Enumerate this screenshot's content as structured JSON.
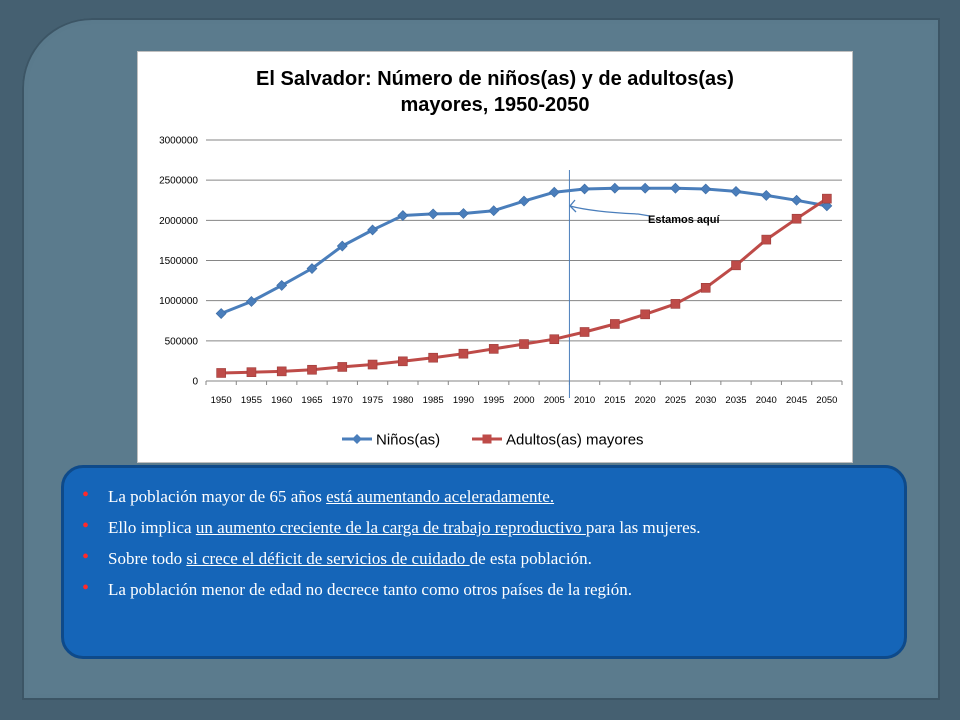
{
  "chart_data": {
    "type": "line",
    "title": "El Salvador: Número de niños(as) y de adultos(as) mayores, 1950-2050",
    "title_lines": [
      "El Salvador: Número de niños(as) y de adultos(as)",
      "mayores, 1950-2050"
    ],
    "categories": [
      "1950",
      "1955",
      "1960",
      "1965",
      "1970",
      "1975",
      "1980",
      "1985",
      "1990",
      "1995",
      "2000",
      "2005",
      "2010",
      "2015",
      "2020",
      "2025",
      "2030",
      "2035",
      "2040",
      "2045",
      "2050"
    ],
    "y_ticks": [
      "0",
      "500000",
      "1000000",
      "1500000",
      "2000000",
      "2500000",
      "3000000"
    ],
    "ylim": [
      0,
      3000000
    ],
    "grid": true,
    "legend_position": "bottom",
    "series": [
      {
        "name": "Niños(as)",
        "color": "#4a7ebb",
        "marker": "diamond",
        "values": [
          840000,
          990000,
          1190000,
          1400000,
          1680000,
          1880000,
          2060000,
          2080000,
          2085000,
          2120000,
          2240000,
          2350000,
          2390000,
          2400000,
          2400000,
          2400000,
          2390000,
          2360000,
          2310000,
          2250000,
          2180000
        ]
      },
      {
        "name": "Adultos(as) mayores",
        "color": "#be4b48",
        "marker": "square",
        "values": [
          100000,
          110000,
          120000,
          140000,
          175000,
          205000,
          245000,
          290000,
          340000,
          400000,
          460000,
          520000,
          610000,
          710000,
          830000,
          960000,
          1160000,
          1440000,
          1760000,
          2020000,
          2270000
        ]
      }
    ],
    "annotation": {
      "text": "Estamos aquí",
      "x_category": "2010"
    }
  },
  "notes": [
    {
      "parts": [
        {
          "t": "La  población mayor de 65 años ",
          "u": false
        },
        {
          "t": "está aumentando aceleradamente.",
          "u": true
        }
      ]
    },
    {
      "parts": [
        {
          "t": "Ello implica ",
          "u": false
        },
        {
          "t": "un aumento creciente de la carga de trabajo reproductivo ",
          "u": true
        },
        {
          "t": "para las mujeres.",
          "u": false
        }
      ]
    },
    {
      "parts": [
        {
          "t": "Sobre todo ",
          "u": false
        },
        {
          "t": "si crece el déficit de servicios de cuidado ",
          "u": true
        },
        {
          "t": "de esta población.",
          "u": false
        }
      ]
    },
    {
      "parts": [
        {
          "t": "La población menor de edad no decrece tanto como otros países de la región.",
          "u": false
        }
      ]
    }
  ],
  "colors": {
    "background": "#456071",
    "panel": "#1565b8",
    "bullet": "#ff2a2a"
  }
}
